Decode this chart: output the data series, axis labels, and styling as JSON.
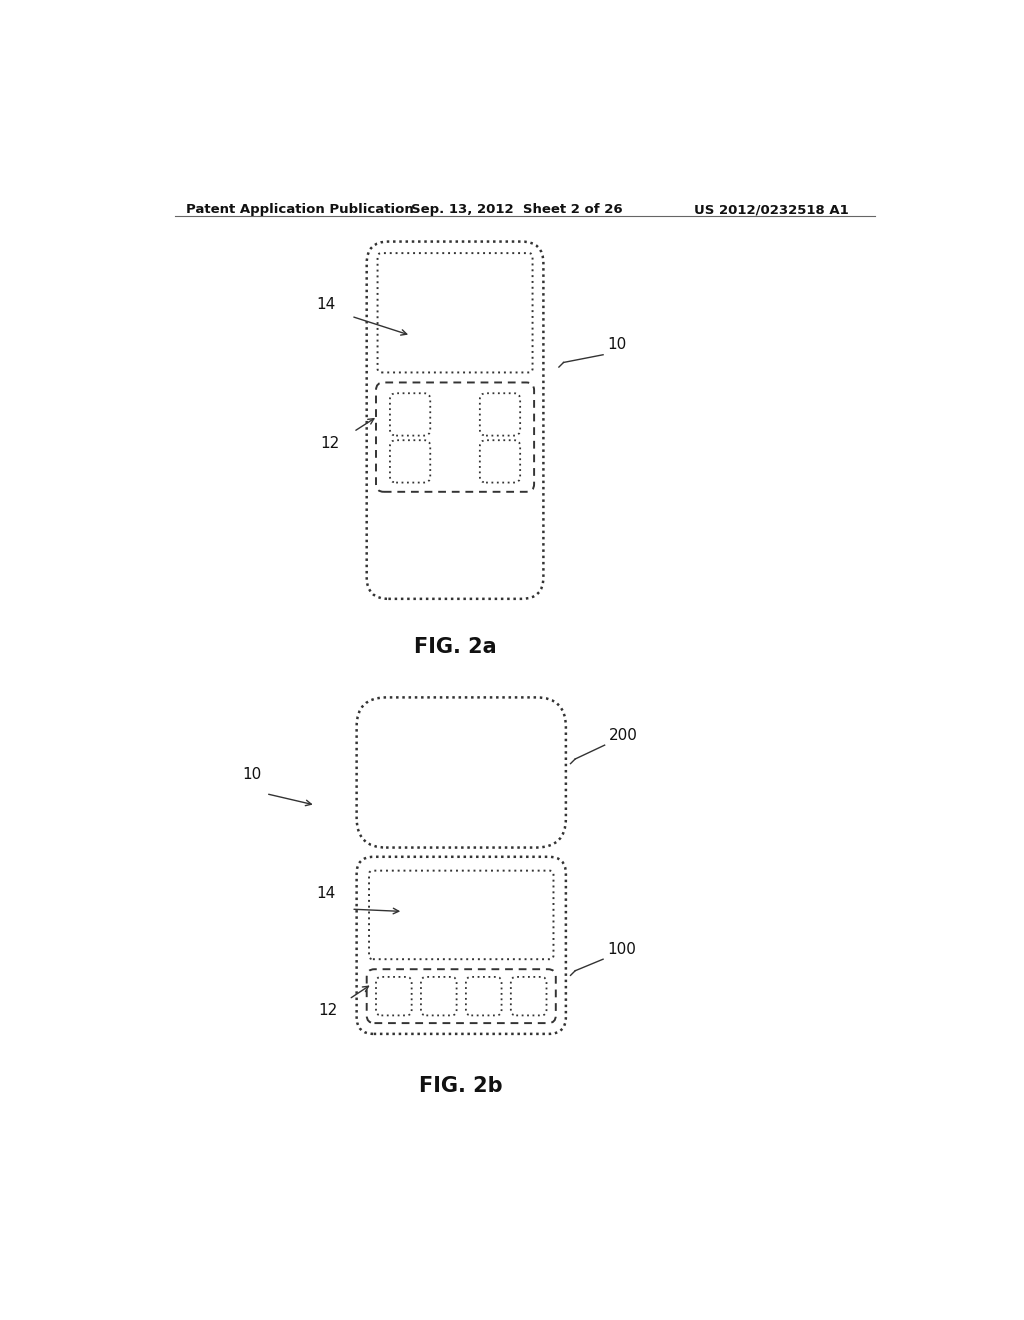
{
  "bg_color": "#ffffff",
  "header_text": "Patent Application Publication",
  "header_date": "Sep. 13, 2012  Sheet 2 of 26",
  "header_patent": "US 2012/0232518 A1",
  "fig2a_label": "FIG. 2a",
  "fig2b_label": "FIG. 2b",
  "label_10a": "10",
  "label_12a": "12",
  "label_14a": "14",
  "label_10b": "10",
  "label_12b": "12",
  "label_14b": "14",
  "label_100": "100",
  "label_200": "200",
  "edge_color": "#333333",
  "line_color": "#444444"
}
